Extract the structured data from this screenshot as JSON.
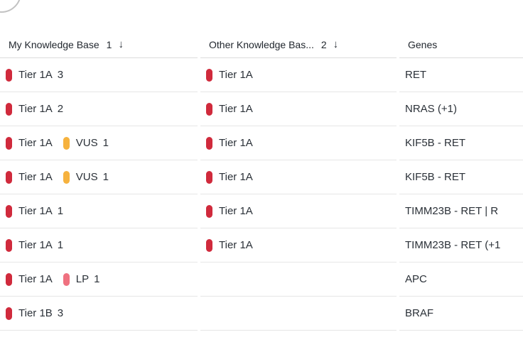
{
  "badge_colors": {
    "red": "#d02a3c",
    "amber": "#f6b23e",
    "pink": "#ef7180"
  },
  "table": {
    "columns": [
      {
        "label": "My Knowledge Base",
        "count": "1",
        "sort_icon": "↓"
      },
      {
        "label": "Other Knowledge Bas...",
        "count": "2",
        "sort_icon": "↓"
      },
      {
        "label": "Genes"
      }
    ],
    "rows": [
      {
        "kb1": [
          {
            "color": "red",
            "label": "Tier 1A",
            "count": "3"
          }
        ],
        "kb2": [
          {
            "color": "red",
            "label": "Tier 1A"
          }
        ],
        "genes": "RET"
      },
      {
        "kb1": [
          {
            "color": "red",
            "label": "Tier 1A",
            "count": "2"
          }
        ],
        "kb2": [
          {
            "color": "red",
            "label": "Tier 1A"
          }
        ],
        "genes": "NRAS (+1)"
      },
      {
        "kb1": [
          {
            "color": "red",
            "label": "Tier 1A"
          },
          {
            "color": "amber",
            "label": "VUS",
            "count": "1"
          }
        ],
        "kb2": [
          {
            "color": "red",
            "label": "Tier 1A"
          }
        ],
        "genes": "KIF5B - RET"
      },
      {
        "kb1": [
          {
            "color": "red",
            "label": "Tier 1A"
          },
          {
            "color": "amber",
            "label": "VUS",
            "count": "1"
          }
        ],
        "kb2": [
          {
            "color": "red",
            "label": "Tier 1A"
          }
        ],
        "genes": "KIF5B - RET"
      },
      {
        "kb1": [
          {
            "color": "red",
            "label": "Tier 1A",
            "count": "1"
          }
        ],
        "kb2": [
          {
            "color": "red",
            "label": "Tier 1A"
          }
        ],
        "genes": "TIMM23B - RET | R"
      },
      {
        "kb1": [
          {
            "color": "red",
            "label": "Tier 1A",
            "count": "1"
          }
        ],
        "kb2": [
          {
            "color": "red",
            "label": "Tier 1A"
          }
        ],
        "genes": "TIMM23B - RET (+1"
      },
      {
        "kb1": [
          {
            "color": "red",
            "label": "Tier 1A"
          },
          {
            "color": "pink",
            "label": "LP",
            "count": "1"
          }
        ],
        "kb2": [],
        "genes": "APC"
      },
      {
        "kb1": [
          {
            "color": "red",
            "label": "Tier 1B",
            "count": "3"
          }
        ],
        "kb2": [],
        "genes": "BRAF"
      }
    ]
  }
}
